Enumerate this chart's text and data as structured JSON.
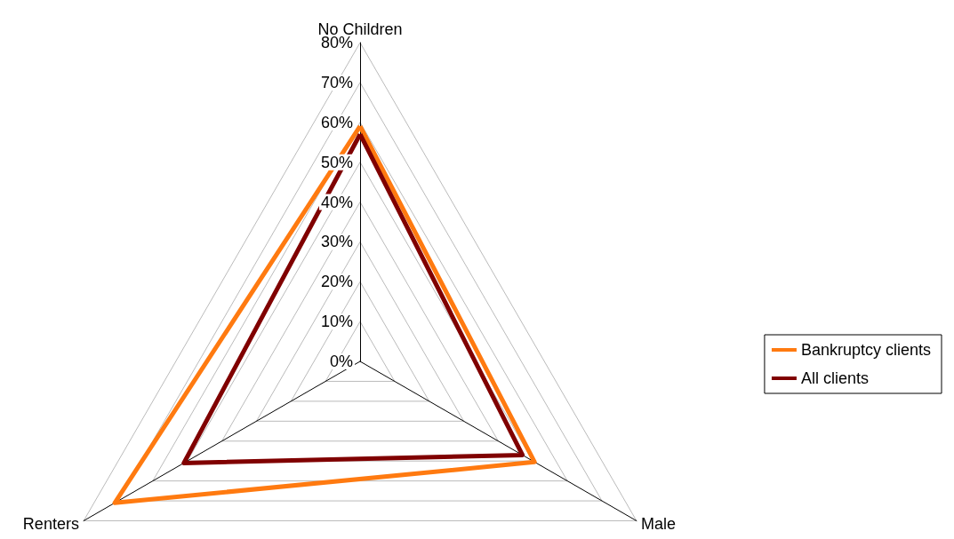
{
  "chart_data": {
    "type": "radar",
    "categories": [
      "No Children",
      "Male",
      "Renters"
    ],
    "series": [
      {
        "name": "Bankruptcy clients",
        "color": "#ff7a10",
        "values": [
          59,
          50.5,
          71
        ]
      },
      {
        "name": "All clients",
        "color": "#800000",
        "values": [
          57,
          47,
          51
        ]
      }
    ],
    "ylim": [
      0,
      80
    ],
    "yticks": [
      {
        "value": 0,
        "label": "0%"
      },
      {
        "value": 10,
        "label": "10%"
      },
      {
        "value": 20,
        "label": "20%"
      },
      {
        "value": 30,
        "label": "30%"
      },
      {
        "value": 40,
        "label": "40%"
      },
      {
        "value": 50,
        "label": "50%"
      },
      {
        "value": 60,
        "label": "60%"
      },
      {
        "value": 70,
        "label": "70%"
      },
      {
        "value": 80,
        "label": "80%"
      }
    ],
    "legend": "right",
    "grid": true
  }
}
